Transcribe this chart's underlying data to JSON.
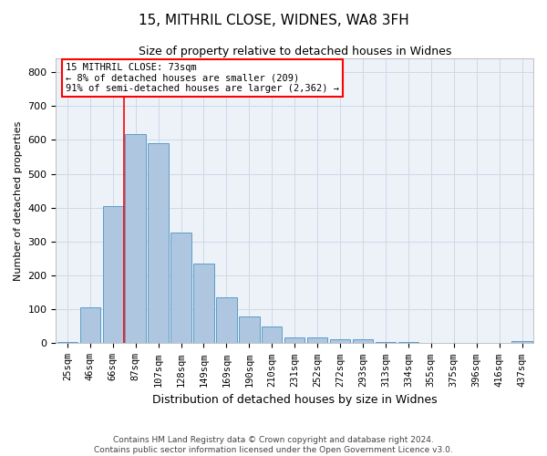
{
  "title1": "15, MITHRIL CLOSE, WIDNES, WA8 3FH",
  "title2": "Size of property relative to detached houses in Widnes",
  "xlabel": "Distribution of detached houses by size in Widnes",
  "ylabel": "Number of detached properties",
  "footer1": "Contains HM Land Registry data © Crown copyright and database right 2024.",
  "footer2": "Contains public sector information licensed under the Open Government Licence v3.0.",
  "annotation_title": "15 MITHRIL CLOSE: 73sqm",
  "annotation_line1": "← 8% of detached houses are smaller (209)",
  "annotation_line2": "91% of semi-detached houses are larger (2,362) →",
  "bar_labels": [
    "25sqm",
    "46sqm",
    "66sqm",
    "87sqm",
    "107sqm",
    "128sqm",
    "149sqm",
    "169sqm",
    "190sqm",
    "210sqm",
    "231sqm",
    "252sqm",
    "272sqm",
    "293sqm",
    "313sqm",
    "334sqm",
    "355sqm",
    "375sqm",
    "396sqm",
    "416sqm",
    "437sqm"
  ],
  "bar_values": [
    5,
    107,
    405,
    617,
    590,
    328,
    235,
    135,
    78,
    50,
    18,
    18,
    13,
    13,
    4,
    4,
    0,
    0,
    0,
    0,
    7
  ],
  "bar_color": "#aec6e0",
  "bar_edge_color": "#5a9ec8",
  "vline_color": "red",
  "ylim": [
    0,
    840
  ],
  "yticks": [
    0,
    100,
    200,
    300,
    400,
    500,
    600,
    700,
    800
  ],
  "grid_color": "#ccd9e8",
  "bg_color": "#edf2f8",
  "annotation_box_color": "white",
  "annotation_box_edge": "red",
  "title1_fontsize": 11,
  "title2_fontsize": 9,
  "xlabel_fontsize": 9,
  "ylabel_fontsize": 8,
  "tick_fontsize": 8,
  "xtick_fontsize": 7.5,
  "footer_fontsize": 6.5
}
